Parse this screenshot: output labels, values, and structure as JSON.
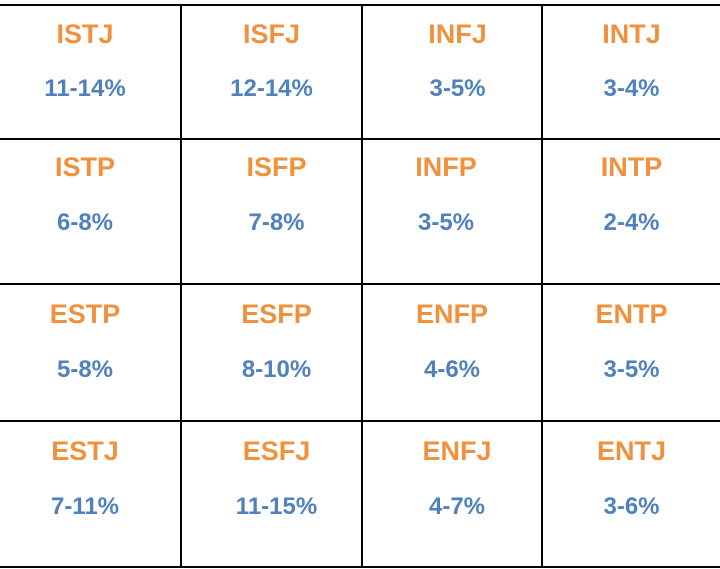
{
  "colors": {
    "type_text": "#f0923d",
    "percent_text": "#4f81bd",
    "border": "#000000"
  },
  "rows": [
    [
      {
        "type": "ISTJ",
        "percent": "11-14%"
      },
      {
        "type": "ISFJ",
        "percent": "12-14%"
      },
      {
        "type": "INFJ",
        "percent": "3-5%"
      },
      {
        "type": "INTJ",
        "percent": "3-4%"
      }
    ],
    [
      {
        "type": "ISTP",
        "percent": "6-8%"
      },
      {
        "type": "ISFP",
        "percent": "7-8%"
      },
      {
        "type": "INFP",
        "percent": "3-5%"
      },
      {
        "type": "INTP",
        "percent": "2-4%"
      }
    ],
    [
      {
        "type": "ESTP",
        "percent": "5-8%"
      },
      {
        "type": "ESFP",
        "percent": "8-10%"
      },
      {
        "type": "ENFP",
        "percent": "4-6%"
      },
      {
        "type": "ENTP",
        "percent": "3-5%"
      }
    ],
    [
      {
        "type": "ESTJ",
        "percent": "7-11%"
      },
      {
        "type": "ESFJ",
        "percent": "11-15%"
      },
      {
        "type": "ENFJ",
        "percent": "4-7%"
      },
      {
        "type": "ENTJ",
        "percent": "3-6%"
      }
    ]
  ]
}
